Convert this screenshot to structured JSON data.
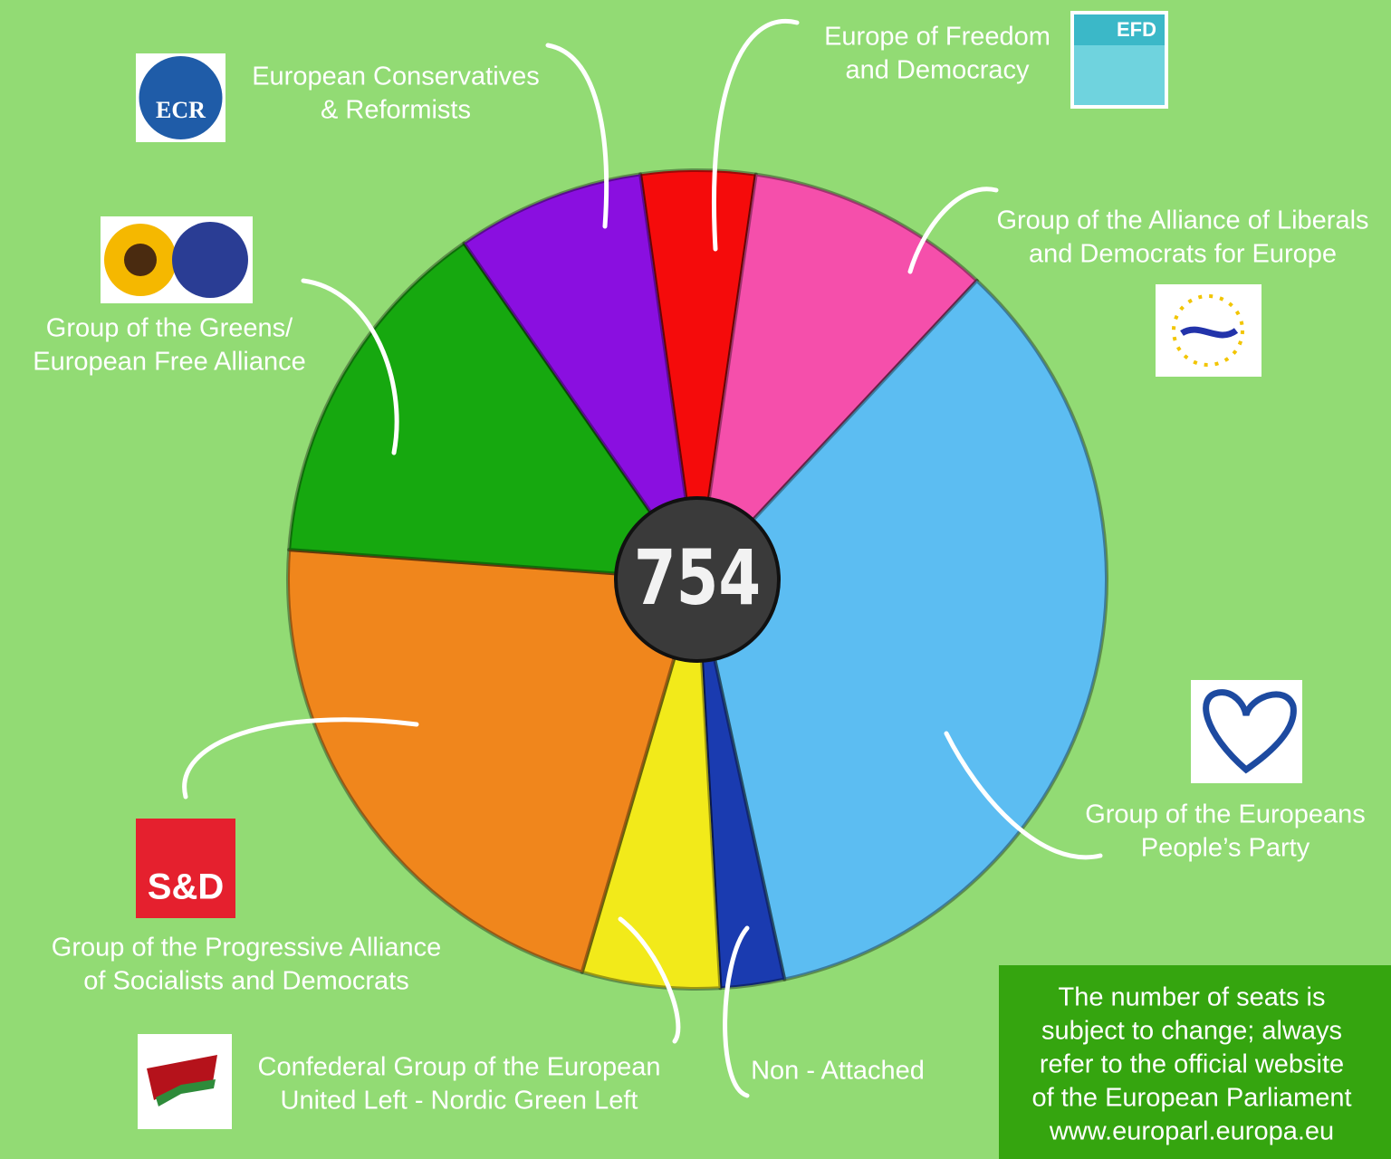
{
  "chart_data": {
    "type": "pie",
    "center_label": 754,
    "categories": [
      [
        "Europe of Freedom",
        "and Democracy"
      ],
      [
        "Group of the Alliance of Liberals",
        "and Democrats for Europe"
      ],
      [
        "Group of the Europeans",
        "People’s Party"
      ],
      [
        "Non - Attached"
      ],
      [
        "Confederal Group of the European",
        "United Left - Nordic Green Left"
      ],
      [
        "Group of the Progressive Alliance",
        "of Socialists and Democrats"
      ],
      [
        "Group of the Greens/",
        "European Free Alliance"
      ],
      [
        "European Conservatives",
        "& Reformists"
      ]
    ],
    "values": [
      34,
      73,
      261,
      19,
      41,
      163,
      107,
      56
    ],
    "colors": [
      "#f50b0b",
      "#f54fab",
      "#5cbdf2",
      "#1a3bb0",
      "#f2ea1a",
      "#f0861c",
      "#16a80f",
      "#8a0fe0"
    ],
    "note": [
      "The number of seats is",
      "subject to change; always",
      "refer to the official website",
      "of the European Parliament",
      "www.europarl.europa.eu"
    ],
    "logos": {
      "ecr": "ECR",
      "efd": "EFD",
      "sd": "S&D"
    }
  }
}
